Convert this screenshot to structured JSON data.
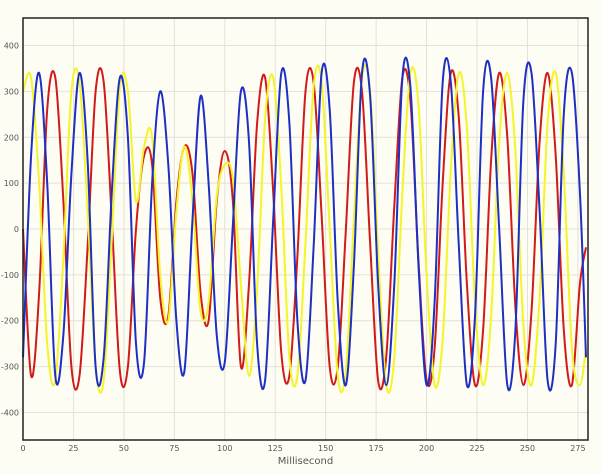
{
  "chart_data": {
    "type": "line",
    "title": "",
    "xlabel": "Millisecond",
    "ylabel": "",
    "xlim": [
      0,
      280
    ],
    "ylim": [
      -460,
      460
    ],
    "x_ticks": [
      0,
      25,
      50,
      75,
      100,
      125,
      150,
      175,
      200,
      225,
      250,
      275
    ],
    "y_ticks": [
      -400,
      -300,
      -200,
      -100,
      0,
      100,
      200,
      300,
      400
    ],
    "grid": true,
    "legend": "none",
    "series": [
      {
        "color": "#d11a1a",
        "approx_frequency_hz": 67,
        "points": [
          [
            0,
            0
          ],
          [
            4,
            -320
          ],
          [
            8,
            -140
          ],
          [
            12,
            260
          ],
          [
            16,
            330
          ],
          [
            20,
            60
          ],
          [
            24,
            -300
          ],
          [
            28,
            -320
          ],
          [
            32,
            -40
          ],
          [
            36,
            300
          ],
          [
            40,
            320
          ],
          [
            44,
            20
          ],
          [
            48,
            -310
          ],
          [
            52,
            -300
          ],
          [
            56,
            0
          ],
          [
            60,
            160
          ],
          [
            64,
            140
          ],
          [
            68,
            -150
          ],
          [
            72,
            -190
          ],
          [
            76,
            60
          ],
          [
            80,
            180
          ],
          [
            84,
            120
          ],
          [
            88,
            -140
          ],
          [
            92,
            -200
          ],
          [
            96,
            60
          ],
          [
            100,
            170
          ],
          [
            104,
            60
          ],
          [
            108,
            -300
          ],
          [
            112,
            -120
          ],
          [
            116,
            230
          ],
          [
            120,
            330
          ],
          [
            124,
            80
          ],
          [
            128,
            -270
          ],
          [
            132,
            -320
          ],
          [
            136,
            -60
          ],
          [
            140,
            300
          ],
          [
            144,
            320
          ],
          [
            148,
            30
          ],
          [
            152,
            -300
          ],
          [
            156,
            -300
          ],
          [
            160,
            0
          ],
          [
            164,
            320
          ],
          [
            168,
            300
          ],
          [
            172,
            -30
          ],
          [
            176,
            -330
          ],
          [
            180,
            -280
          ],
          [
            184,
            50
          ],
          [
            188,
            330
          ],
          [
            192,
            280
          ],
          [
            196,
            -70
          ],
          [
            200,
            -330
          ],
          [
            204,
            -260
          ],
          [
            208,
            100
          ],
          [
            212,
            340
          ],
          [
            216,
            240
          ],
          [
            220,
            -120
          ],
          [
            224,
            -340
          ],
          [
            228,
            -220
          ],
          [
            232,
            150
          ],
          [
            236,
            340
          ],
          [
            240,
            200
          ],
          [
            244,
            -170
          ],
          [
            248,
            -340
          ],
          [
            252,
            -180
          ],
          [
            256,
            190
          ],
          [
            260,
            340
          ],
          [
            264,
            160
          ],
          [
            268,
            -220
          ],
          [
            272,
            -340
          ],
          [
            276,
            -120
          ],
          [
            279,
            -40
          ]
        ]
      },
      {
        "color": "#f4f42a",
        "approx_frequency_hz": 67,
        "points": [
          [
            0,
            300
          ],
          [
            4,
            330
          ],
          [
            8,
            100
          ],
          [
            12,
            -250
          ],
          [
            16,
            -330
          ],
          [
            20,
            -60
          ],
          [
            24,
            300
          ],
          [
            28,
            320
          ],
          [
            32,
            40
          ],
          [
            36,
            -300
          ],
          [
            40,
            -330
          ],
          [
            44,
            -20
          ],
          [
            48,
            310
          ],
          [
            52,
            300
          ],
          [
            56,
            60
          ],
          [
            60,
            180
          ],
          [
            64,
            200
          ],
          [
            68,
            -100
          ],
          [
            72,
            -200
          ],
          [
            76,
            40
          ],
          [
            80,
            180
          ],
          [
            84,
            60
          ],
          [
            88,
            -180
          ],
          [
            92,
            -160
          ],
          [
            96,
            70
          ],
          [
            100,
            140
          ],
          [
            104,
            110
          ],
          [
            108,
            -120
          ],
          [
            112,
            -320
          ],
          [
            116,
            -130
          ],
          [
            120,
            240
          ],
          [
            124,
            330
          ],
          [
            128,
            90
          ],
          [
            132,
            -280
          ],
          [
            136,
            -320
          ],
          [
            140,
            -30
          ],
          [
            144,
            310
          ],
          [
            148,
            320
          ],
          [
            152,
            0
          ],
          [
            156,
            -320
          ],
          [
            160,
            -310
          ],
          [
            164,
            20
          ],
          [
            168,
            330
          ],
          [
            172,
            300
          ],
          [
            176,
            -50
          ],
          [
            180,
            -340
          ],
          [
            184,
            -280
          ],
          [
            188,
            80
          ],
          [
            192,
            340
          ],
          [
            196,
            270
          ],
          [
            200,
            -100
          ],
          [
            204,
            -340
          ],
          [
            208,
            -240
          ],
          [
            212,
            130
          ],
          [
            216,
            340
          ],
          [
            220,
            220
          ],
          [
            224,
            -160
          ],
          [
            228,
            -340
          ],
          [
            232,
            -190
          ],
          [
            236,
            190
          ],
          [
            240,
            340
          ],
          [
            244,
            170
          ],
          [
            248,
            -210
          ],
          [
            252,
            -340
          ],
          [
            256,
            -150
          ],
          [
            260,
            230
          ],
          [
            264,
            340
          ],
          [
            268,
            120
          ],
          [
            272,
            -260
          ],
          [
            276,
            -340
          ],
          [
            279,
            -260
          ]
        ]
      },
      {
        "color": "#1e2fc4",
        "approx_frequency_hz": 67,
        "points": [
          [
            0,
            -280
          ],
          [
            4,
            160
          ],
          [
            8,
            340
          ],
          [
            12,
            100
          ],
          [
            16,
            -320
          ],
          [
            20,
            -230
          ],
          [
            24,
            120
          ],
          [
            28,
            340
          ],
          [
            32,
            150
          ],
          [
            36,
            -300
          ],
          [
            40,
            -280
          ],
          [
            44,
            80
          ],
          [
            48,
            330
          ],
          [
            52,
            200
          ],
          [
            56,
            -250
          ],
          [
            60,
            -290
          ],
          [
            64,
            100
          ],
          [
            68,
            300
          ],
          [
            72,
            140
          ],
          [
            76,
            -200
          ],
          [
            80,
            -310
          ],
          [
            84,
            20
          ],
          [
            88,
            290
          ],
          [
            92,
            100
          ],
          [
            96,
            -230
          ],
          [
            100,
            -290
          ],
          [
            104,
            10
          ],
          [
            108,
            300
          ],
          [
            112,
            190
          ],
          [
            116,
            -250
          ],
          [
            120,
            -330
          ],
          [
            124,
            20
          ],
          [
            128,
            340
          ],
          [
            132,
            230
          ],
          [
            136,
            -200
          ],
          [
            140,
            -330
          ],
          [
            144,
            -40
          ],
          [
            148,
            340
          ],
          [
            152,
            260
          ],
          [
            156,
            -160
          ],
          [
            160,
            -340
          ],
          [
            164,
            -80
          ],
          [
            168,
            340
          ],
          [
            172,
            290
          ],
          [
            176,
            -120
          ],
          [
            180,
            -340
          ],
          [
            184,
            -120
          ],
          [
            188,
            330
          ],
          [
            192,
            310
          ],
          [
            196,
            -80
          ],
          [
            200,
            -340
          ],
          [
            204,
            -160
          ],
          [
            208,
            320
          ],
          [
            212,
            320
          ],
          [
            216,
            -40
          ],
          [
            220,
            -340
          ],
          [
            224,
            -190
          ],
          [
            228,
            300
          ],
          [
            232,
            330
          ],
          [
            236,
            0
          ],
          [
            240,
            -340
          ],
          [
            244,
            -220
          ],
          [
            248,
            280
          ],
          [
            252,
            340
          ],
          [
            256,
            40
          ],
          [
            260,
            -330
          ],
          [
            264,
            -250
          ],
          [
            268,
            250
          ],
          [
            272,
            340
          ],
          [
            276,
            80
          ],
          [
            279,
            -280
          ]
        ]
      }
    ]
  }
}
